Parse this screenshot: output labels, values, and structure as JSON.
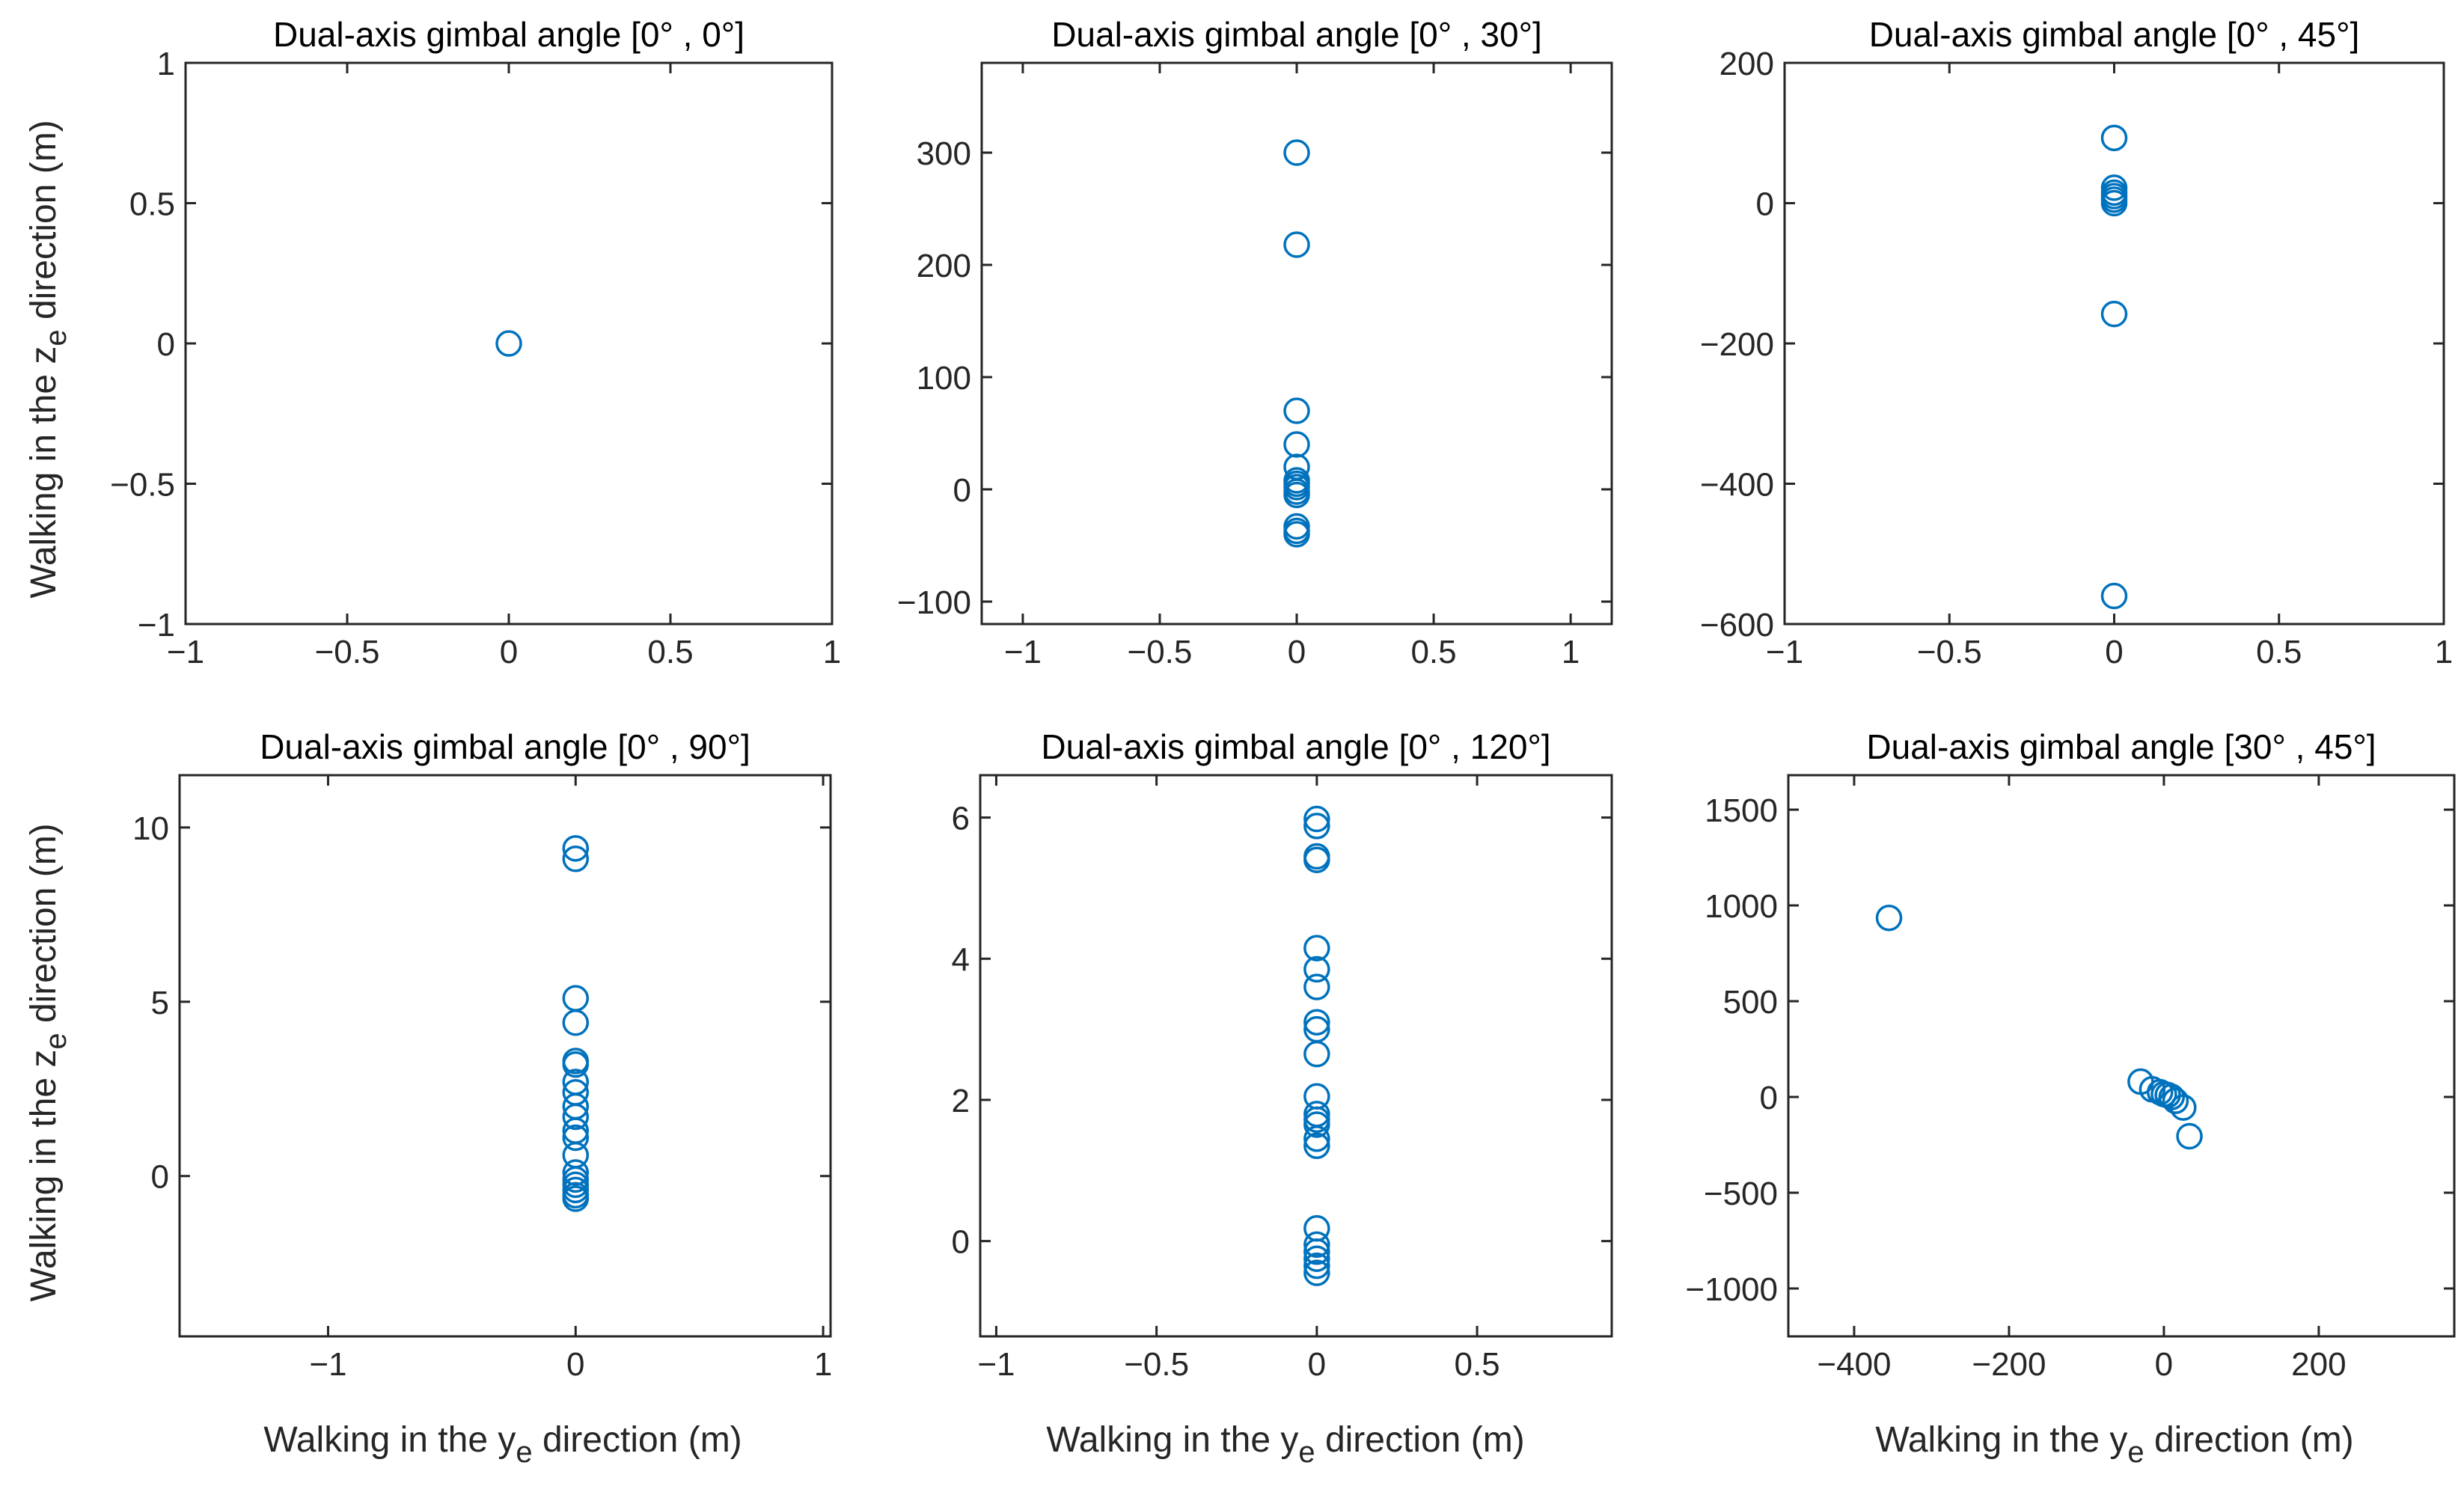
{
  "figure": {
    "xlabel_main": "Walking in the y",
    "xlabel_sub": "e",
    "xlabel_rest": " direction (m)",
    "ylabel_main": "Walking in the z",
    "ylabel_sub": "e",
    "ylabel_rest": " direction (m)",
    "marker_color": "#0072BD"
  },
  "chart_data": [
    {
      "type": "scatter",
      "title": "Dual-axis gimbal angle  [0° ,  0°]",
      "xlabel": "",
      "ylabel": "Walking in the z_e direction (m)",
      "xlim": [
        -1,
        1
      ],
      "ylim": [
        -1,
        1
      ],
      "xticks": [
        -1,
        -0.5,
        0,
        0.5,
        1
      ],
      "xtick_labels": [
        "−1",
        "−0.5",
        "0",
        "0.5",
        "1"
      ],
      "yticks": [
        -1,
        -0.5,
        0,
        0.5,
        1
      ],
      "ytick_labels": [
        "−1",
        "−0.5",
        "0",
        "0.5",
        "1"
      ],
      "points": [
        [
          0,
          0
        ]
      ]
    },
    {
      "type": "scatter",
      "title": "Dual-axis gimbal angle  [0° ,  30°]",
      "xlabel": "",
      "ylabel": "",
      "xlim": [
        -1.15,
        1.15
      ],
      "ylim": [
        -120,
        380
      ],
      "xticks": [
        -1,
        -0.5,
        0,
        0.5,
        1
      ],
      "xtick_labels": [
        "−1",
        "−0.5",
        "0",
        "0.5",
        "1"
      ],
      "yticks": [
        -100,
        0,
        100,
        200,
        300
      ],
      "ytick_labels": [
        "−100",
        "0",
        "100",
        "200",
        "300"
      ],
      "points": [
        [
          0,
          300
        ],
        [
          0,
          218
        ],
        [
          0,
          70
        ],
        [
          0,
          40
        ],
        [
          0,
          20
        ],
        [
          0,
          8
        ],
        [
          0,
          5
        ],
        [
          0,
          2
        ],
        [
          0,
          -2
        ],
        [
          0,
          -5
        ],
        [
          0,
          -33
        ],
        [
          0,
          -37
        ],
        [
          0,
          -40
        ]
      ]
    },
    {
      "type": "scatter",
      "title": "Dual-axis gimbal angle  [0° ,  45°]",
      "xlabel": "",
      "ylabel": "",
      "xlim": [
        -1,
        1
      ],
      "ylim": [
        -600,
        200
      ],
      "xticks": [
        -1,
        -0.5,
        0,
        0.5,
        1
      ],
      "xtick_labels": [
        "−1",
        "−0.5",
        "0",
        "0.5",
        "1"
      ],
      "yticks": [
        -600,
        -400,
        -200,
        0,
        200
      ],
      "ytick_labels": [
        "−600",
        "−400",
        "−200",
        "0",
        "200"
      ],
      "points": [
        [
          0,
          93
        ],
        [
          0,
          22
        ],
        [
          0,
          15
        ],
        [
          0,
          10
        ],
        [
          0,
          5
        ],
        [
          0,
          0
        ],
        [
          0,
          -158
        ],
        [
          0,
          -560
        ]
      ]
    },
    {
      "type": "scatter",
      "title": "Dual-axis gimbal angle  [0° ,  90°]",
      "xlabel": "Walking in the y_e direction (m)",
      "ylabel": "Walking in the z_e direction (m)",
      "xlim": [
        -1.6,
        1.03
      ],
      "ylim": [
        -4.6,
        11.5
      ],
      "xticks": [
        -1,
        0,
        1
      ],
      "xtick_labels": [
        "−1",
        "0",
        "1"
      ],
      "yticks": [
        0,
        5,
        10
      ],
      "ytick_labels": [
        "0",
        "5",
        "10"
      ],
      "points": [
        [
          0,
          9.4
        ],
        [
          0,
          9.1
        ],
        [
          0,
          5.1
        ],
        [
          0,
          4.4
        ],
        [
          0,
          3.3
        ],
        [
          0,
          3.2
        ],
        [
          0,
          2.7
        ],
        [
          0,
          2.4
        ],
        [
          0,
          2.0
        ],
        [
          0,
          1.7
        ],
        [
          0,
          1.3
        ],
        [
          0,
          1.1
        ],
        [
          0,
          0.6
        ],
        [
          0,
          0.1
        ],
        [
          0,
          -0.1
        ],
        [
          0,
          -0.25
        ],
        [
          0,
          -0.4
        ],
        [
          0,
          -0.55
        ],
        [
          0,
          -0.65
        ]
      ]
    },
    {
      "type": "scatter",
      "title": "Dual-axis gimbal angle  [0° ,  120°]",
      "xlabel": "Walking in the y_e direction (m)",
      "ylabel": "",
      "xlim": [
        -1.05,
        0.92
      ],
      "ylim": [
        -1.35,
        6.6
      ],
      "xticks": [
        -1,
        -0.5,
        0,
        0.5
      ],
      "xtick_labels": [
        "−1",
        "−0.5",
        "0",
        "0.5"
      ],
      "yticks": [
        0,
        2,
        4,
        6
      ],
      "ytick_labels": [
        "0",
        "2",
        "4",
        "6"
      ],
      "points": [
        [
          0,
          5.98
        ],
        [
          0,
          5.88
        ],
        [
          0,
          5.45
        ],
        [
          0,
          5.4
        ],
        [
          0,
          4.15
        ],
        [
          0,
          3.85
        ],
        [
          0,
          3.6
        ],
        [
          0,
          3.1
        ],
        [
          0,
          3.0
        ],
        [
          0,
          2.65
        ],
        [
          0,
          2.05
        ],
        [
          0,
          1.8
        ],
        [
          0,
          1.72
        ],
        [
          0,
          1.65
        ],
        [
          0,
          1.45
        ],
        [
          0,
          1.35
        ],
        [
          0,
          0.18
        ],
        [
          0,
          -0.05
        ],
        [
          0,
          -0.15
        ],
        [
          0,
          -0.25
        ],
        [
          0,
          -0.35
        ],
        [
          0,
          -0.45
        ]
      ]
    },
    {
      "type": "scatter",
      "title": "Dual-axis gimbal angle  [30° ,  45°]",
      "xlabel": "Walking in the y_e direction (m)",
      "ylabel": "",
      "xlim": [
        -485,
        375
      ],
      "ylim": [
        -1250,
        1680
      ],
      "xticks": [
        -400,
        -200,
        0,
        200
      ],
      "xtick_labels": [
        "−400",
        "−200",
        "0",
        "200"
      ],
      "yticks": [
        -1000,
        -500,
        0,
        500,
        1000,
        1500
      ],
      "ytick_labels": [
        "−1000",
        "−500",
        "0",
        "500",
        "1000",
        "1500"
      ],
      "points": [
        [
          -355,
          935
        ],
        [
          -30,
          80
        ],
        [
          -15,
          40
        ],
        [
          -5,
          25
        ],
        [
          0,
          15
        ],
        [
          5,
          10
        ],
        [
          10,
          0
        ],
        [
          15,
          -20
        ],
        [
          25,
          -55
        ],
        [
          33,
          -205
        ]
      ]
    }
  ]
}
